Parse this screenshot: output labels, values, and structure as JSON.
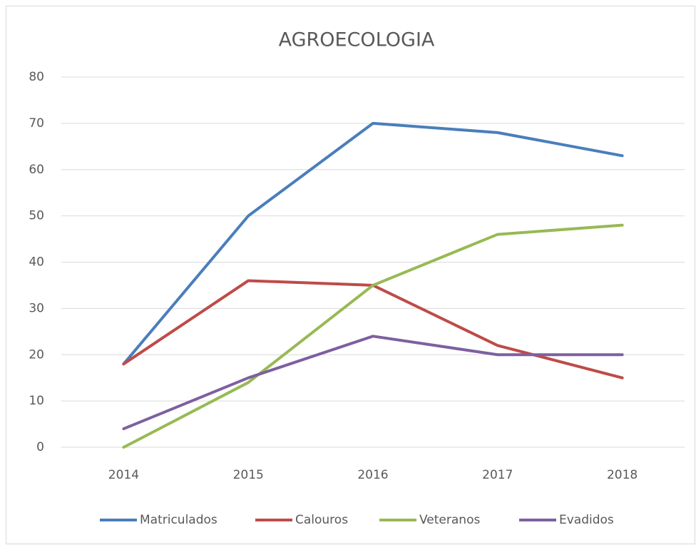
{
  "chart_data": {
    "type": "line",
    "title": "AGROECOLOGIA",
    "categories": [
      "2014",
      "2015",
      "2016",
      "2017",
      "2018"
    ],
    "series": [
      {
        "name": "Matriculados",
        "color": "#4a7ebb",
        "values": [
          18,
          50,
          70,
          68,
          63
        ]
      },
      {
        "name": "Calouros",
        "color": "#be4b48",
        "values": [
          18,
          36,
          35,
          22,
          15
        ]
      },
      {
        "name": "Veteranos",
        "color": "#98b954",
        "values": [
          0,
          14,
          35,
          46,
          48
        ]
      },
      {
        "name": "Evadidos",
        "color": "#7d60a0",
        "values": [
          4,
          15,
          24,
          20,
          20
        ]
      }
    ],
    "ylim": [
      0,
      80
    ],
    "yticks": [
      0,
      10,
      20,
      30,
      40,
      50,
      60,
      70,
      80
    ],
    "grid": true,
    "legend": "bottom"
  }
}
